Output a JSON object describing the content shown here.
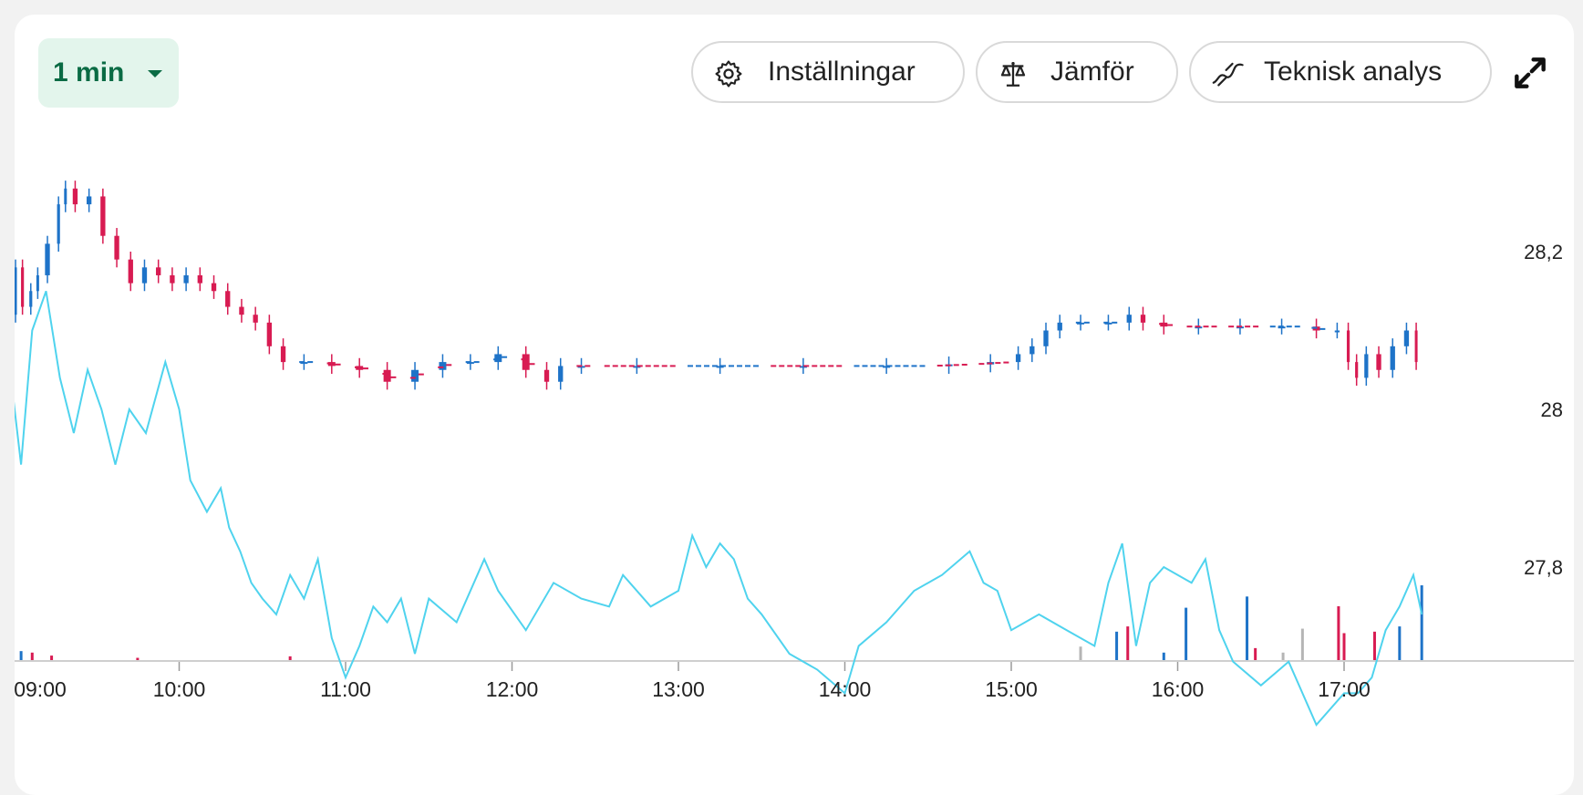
{
  "toolbar": {
    "interval": "1 min",
    "settings_label": "Inställningar",
    "compare_label": "Jämför",
    "technical_label": "Teknisk analys",
    "icons": [
      "gear-icon",
      "scale-icon",
      "trend-line-icon",
      "expand-icon"
    ]
  },
  "colors": {
    "up": "#1e73c8",
    "down": "#d81b52",
    "neutral": "#b5b5b5",
    "comparison_line": "#4fd3ee",
    "accent": "#0a6b44"
  },
  "chart_data": {
    "type": "candlestick",
    "x_range": [
      "08:59",
      "17:30"
    ],
    "y_range": [
      27.7,
      28.4
    ],
    "y_ticks": [
      {
        "value": 28.2,
        "label": "28,2"
      },
      {
        "value": 28.0,
        "label": "28"
      },
      {
        "value": 27.8,
        "label": "27,8"
      }
    ],
    "x_ticks": [
      "09:00",
      "10:00",
      "11:00",
      "12:00",
      "13:00",
      "14:00",
      "15:00",
      "16:00",
      "17:00"
    ],
    "price_series": [
      [
        "09:00",
        28.12
      ],
      [
        "09:02",
        28.18
      ],
      [
        "09:05",
        28.13
      ],
      [
        "09:08",
        28.15
      ],
      [
        "09:10",
        28.17
      ],
      [
        "09:15",
        28.21
      ],
      [
        "09:18",
        28.26
      ],
      [
        "09:20",
        28.28
      ],
      [
        "09:25",
        28.26
      ],
      [
        "09:30",
        28.27
      ],
      [
        "09:35",
        28.22
      ],
      [
        "09:40",
        28.19
      ],
      [
        "09:45",
        28.16
      ],
      [
        "09:50",
        28.18
      ],
      [
        "09:55",
        28.17
      ],
      [
        "10:00",
        28.16
      ],
      [
        "10:05",
        28.17
      ],
      [
        "10:10",
        28.16
      ],
      [
        "10:15",
        28.15
      ],
      [
        "10:20",
        28.13
      ],
      [
        "10:25",
        28.12
      ],
      [
        "10:30",
        28.11
      ],
      [
        "10:35",
        28.08
      ],
      [
        "10:40",
        28.06
      ],
      [
        "10:50",
        28.06
      ],
      [
        "11:00",
        28.055
      ],
      [
        "11:10",
        28.05
      ],
      [
        "11:20",
        28.035
      ],
      [
        "11:30",
        28.05
      ],
      [
        "11:40",
        28.06
      ],
      [
        "11:50",
        28.06
      ],
      [
        "12:00",
        28.07
      ],
      [
        "12:10",
        28.05
      ],
      [
        "12:15",
        28.035
      ],
      [
        "12:20",
        28.055
      ],
      [
        "12:30",
        28.055
      ],
      [
        "13:00",
        28.055
      ],
      [
        "13:30",
        28.055
      ],
      [
        "14:00",
        28.055
      ],
      [
        "14:30",
        28.055
      ],
      [
        "14:45",
        28.057
      ],
      [
        "15:00",
        28.06
      ],
      [
        "15:05",
        28.07
      ],
      [
        "15:10",
        28.08
      ],
      [
        "15:15",
        28.1
      ],
      [
        "15:20",
        28.11
      ],
      [
        "15:30",
        28.11
      ],
      [
        "15:40",
        28.11
      ],
      [
        "15:45",
        28.12
      ],
      [
        "15:50",
        28.11
      ],
      [
        "16:00",
        28.105
      ],
      [
        "16:15",
        28.105
      ],
      [
        "16:30",
        28.105
      ],
      [
        "16:45",
        28.105
      ],
      [
        "16:55",
        28.1
      ],
      [
        "17:00",
        28.1
      ],
      [
        "17:03",
        28.06
      ],
      [
        "17:06",
        28.04
      ],
      [
        "17:10",
        28.07
      ],
      [
        "17:15",
        28.05
      ],
      [
        "17:20",
        28.08
      ],
      [
        "17:25",
        28.1
      ],
      [
        "17:27",
        28.06
      ]
    ],
    "comparison_series": [
      [
        "09:00",
        28.02
      ],
      [
        "09:03",
        27.93
      ],
      [
        "09:07",
        28.1
      ],
      [
        "09:12",
        28.15
      ],
      [
        "09:17",
        28.04
      ],
      [
        "09:22",
        27.97
      ],
      [
        "09:27",
        28.05
      ],
      [
        "09:32",
        28.0
      ],
      [
        "09:37",
        27.93
      ],
      [
        "09:42",
        28.0
      ],
      [
        "09:48",
        27.97
      ],
      [
        "09:55",
        28.06
      ],
      [
        "10:00",
        28.0
      ],
      [
        "10:04",
        27.91
      ],
      [
        "10:10",
        27.87
      ],
      [
        "10:15",
        27.9
      ],
      [
        "10:18",
        27.85
      ],
      [
        "10:22",
        27.82
      ],
      [
        "10:26",
        27.78
      ],
      [
        "10:30",
        27.76
      ],
      [
        "10:35",
        27.74
      ],
      [
        "10:40",
        27.79
      ],
      [
        "10:45",
        27.76
      ],
      [
        "10:50",
        27.81
      ],
      [
        "10:55",
        27.71
      ],
      [
        "11:00",
        27.66
      ],
      [
        "11:05",
        27.7
      ],
      [
        "11:10",
        27.75
      ],
      [
        "11:15",
        27.73
      ],
      [
        "11:20",
        27.76
      ],
      [
        "11:25",
        27.69
      ],
      [
        "11:30",
        27.76
      ],
      [
        "11:40",
        27.73
      ],
      [
        "11:50",
        27.81
      ],
      [
        "11:55",
        27.77
      ],
      [
        "12:05",
        27.72
      ],
      [
        "12:15",
        27.78
      ],
      [
        "12:25",
        27.76
      ],
      [
        "12:35",
        27.75
      ],
      [
        "12:40",
        27.79
      ],
      [
        "12:50",
        27.75
      ],
      [
        "13:00",
        27.77
      ],
      [
        "13:05",
        27.84
      ],
      [
        "13:10",
        27.8
      ],
      [
        "13:15",
        27.83
      ],
      [
        "13:20",
        27.81
      ],
      [
        "13:25",
        27.76
      ],
      [
        "13:30",
        27.74
      ],
      [
        "13:40",
        27.69
      ],
      [
        "13:50",
        27.67
      ],
      [
        "14:00",
        27.64
      ],
      [
        "14:05",
        27.7
      ],
      [
        "14:15",
        27.73
      ],
      [
        "14:25",
        27.77
      ],
      [
        "14:35",
        27.79
      ],
      [
        "14:45",
        27.82
      ],
      [
        "14:50",
        27.78
      ],
      [
        "14:55",
        27.77
      ],
      [
        "15:00",
        27.72
      ],
      [
        "15:10",
        27.74
      ],
      [
        "15:20",
        27.72
      ],
      [
        "15:30",
        27.7
      ],
      [
        "15:35",
        27.78
      ],
      [
        "15:40",
        27.83
      ],
      [
        "15:45",
        27.7
      ],
      [
        "15:50",
        27.78
      ],
      [
        "15:55",
        27.8
      ],
      [
        "16:05",
        27.78
      ],
      [
        "16:10",
        27.81
      ],
      [
        "16:15",
        27.72
      ],
      [
        "16:20",
        27.68
      ],
      [
        "16:30",
        27.65
      ],
      [
        "16:40",
        27.68
      ],
      [
        "16:45",
        27.64
      ],
      [
        "16:50",
        27.6
      ],
      [
        "17:00",
        27.64
      ],
      [
        "17:05",
        27.64
      ],
      [
        "17:10",
        27.66
      ],
      [
        "17:15",
        27.72
      ],
      [
        "17:20",
        27.75
      ],
      [
        "17:25",
        27.79
      ],
      [
        "17:28",
        27.74
      ]
    ],
    "volume_bars": [
      [
        "09:00",
        0.25,
        "up"
      ],
      [
        "09:03",
        0.12,
        "up"
      ],
      [
        "09:07",
        0.1,
        "down"
      ],
      [
        "09:14",
        0.06,
        "down"
      ],
      [
        "09:45",
        0.03,
        "down"
      ],
      [
        "10:40",
        0.05,
        "down"
      ],
      [
        "15:25",
        0.18,
        "neutral"
      ],
      [
        "15:38",
        0.38,
        "up"
      ],
      [
        "15:42",
        0.45,
        "down"
      ],
      [
        "15:55",
        0.1,
        "up"
      ],
      [
        "16:03",
        0.7,
        "up"
      ],
      [
        "16:25",
        0.85,
        "up"
      ],
      [
        "16:28",
        0.16,
        "down"
      ],
      [
        "16:38",
        0.1,
        "neutral"
      ],
      [
        "16:45",
        0.42,
        "neutral"
      ],
      [
        "16:58",
        0.72,
        "down"
      ],
      [
        "17:00",
        0.36,
        "down"
      ],
      [
        "17:11",
        0.38,
        "down"
      ],
      [
        "17:20",
        0.45,
        "up"
      ],
      [
        "17:28",
        1.0,
        "up"
      ]
    ]
  }
}
